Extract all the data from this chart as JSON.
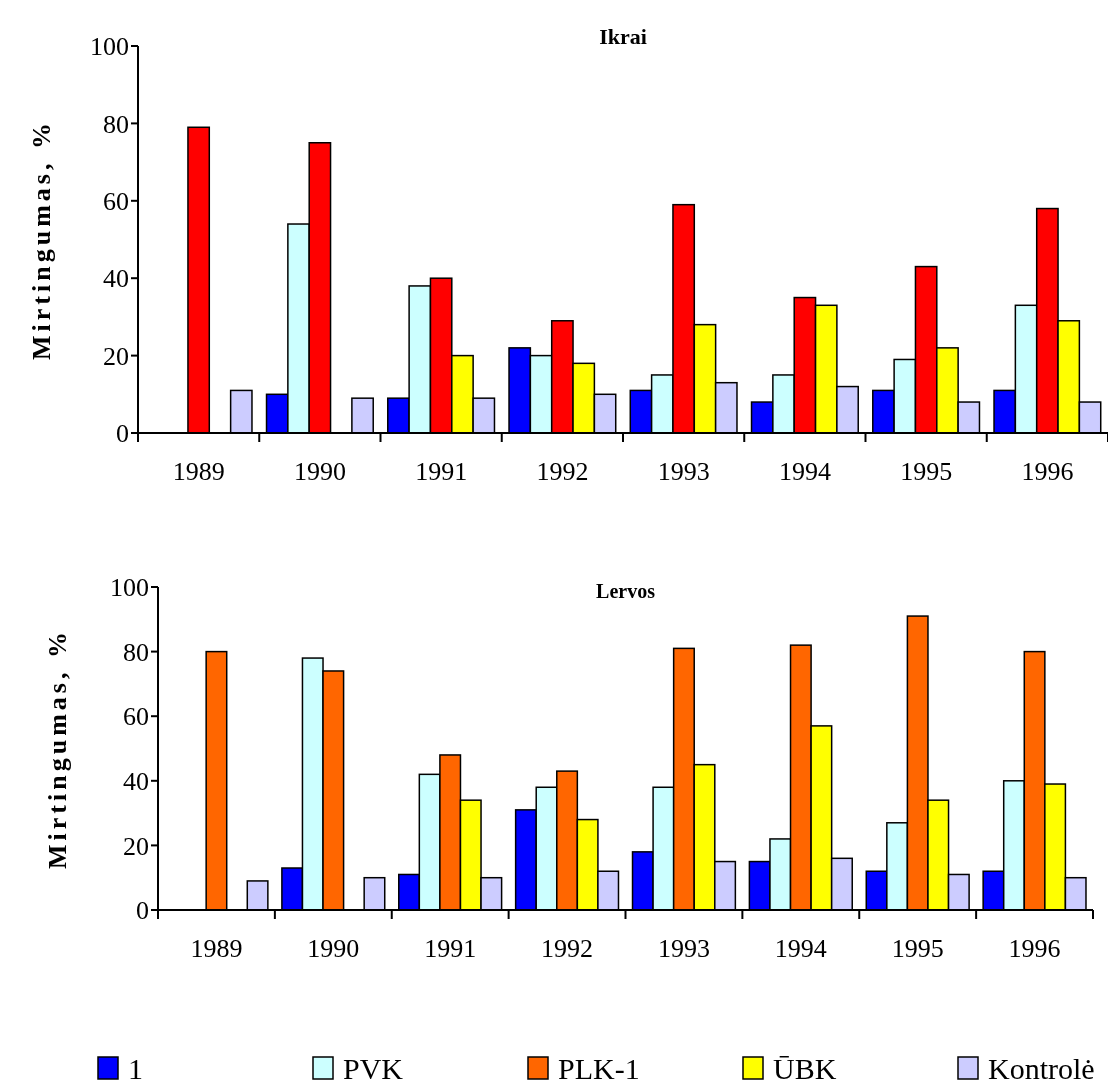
{
  "chart_data": [
    {
      "type": "bar",
      "title": "Ikrai",
      "ylabel": "Mirtingumas, %",
      "categories": [
        "1989",
        "1990",
        "1991",
        "1992",
        "1993",
        "1994",
        "1995",
        "1996"
      ],
      "ylim": [
        0,
        100
      ],
      "yticks": [
        0,
        20,
        40,
        60,
        80,
        100
      ],
      "grid": false,
      "legend": false,
      "series": [
        {
          "color": "#0000ff",
          "values": [
            0,
            10,
            9,
            22,
            11,
            8,
            11,
            11
          ]
        },
        {
          "color": "#ccffff",
          "values": [
            0,
            54,
            38,
            20,
            15,
            15,
            19,
            33
          ]
        },
        {
          "color": "#ff0000",
          "values": [
            79,
            75,
            40,
            29,
            59,
            35,
            43,
            58
          ]
        },
        {
          "color": "#ffff00",
          "values": [
            0,
            0,
            20,
            18,
            28,
            33,
            22,
            29
          ]
        },
        {
          "color": "#ccccff",
          "values": [
            11,
            9,
            9,
            10,
            13,
            12,
            8,
            8
          ]
        }
      ]
    },
    {
      "type": "bar",
      "title": "Lervos",
      "ylabel": "Mirtingumas, %",
      "categories": [
        "1989",
        "1990",
        "1991",
        "1992",
        "1993",
        "1994",
        "1995",
        "1996"
      ],
      "ylim": [
        0,
        100
      ],
      "yticks": [
        0,
        20,
        40,
        60,
        80,
        100
      ],
      "grid": false,
      "legend": "bottom",
      "series": [
        {
          "name": "1",
          "color": "#0000ff",
          "values": [
            0,
            13,
            11,
            31,
            18,
            15,
            12,
            12
          ]
        },
        {
          "name": "PVK",
          "color": "#ccffff",
          "values": [
            0,
            78,
            42,
            38,
            38,
            22,
            27,
            40
          ]
        },
        {
          "name": "PLK-1",
          "color": "#ff6600",
          "values": [
            80,
            74,
            48,
            43,
            81,
            82,
            91,
            80
          ]
        },
        {
          "name": "ŪBK",
          "color": "#ffff00",
          "values": [
            0,
            0,
            34,
            28,
            45,
            57,
            34,
            39
          ]
        },
        {
          "name": "Kontrolė",
          "color": "#ccccff",
          "values": [
            9,
            10,
            10,
            12,
            15,
            16,
            11,
            10
          ]
        }
      ]
    }
  ]
}
